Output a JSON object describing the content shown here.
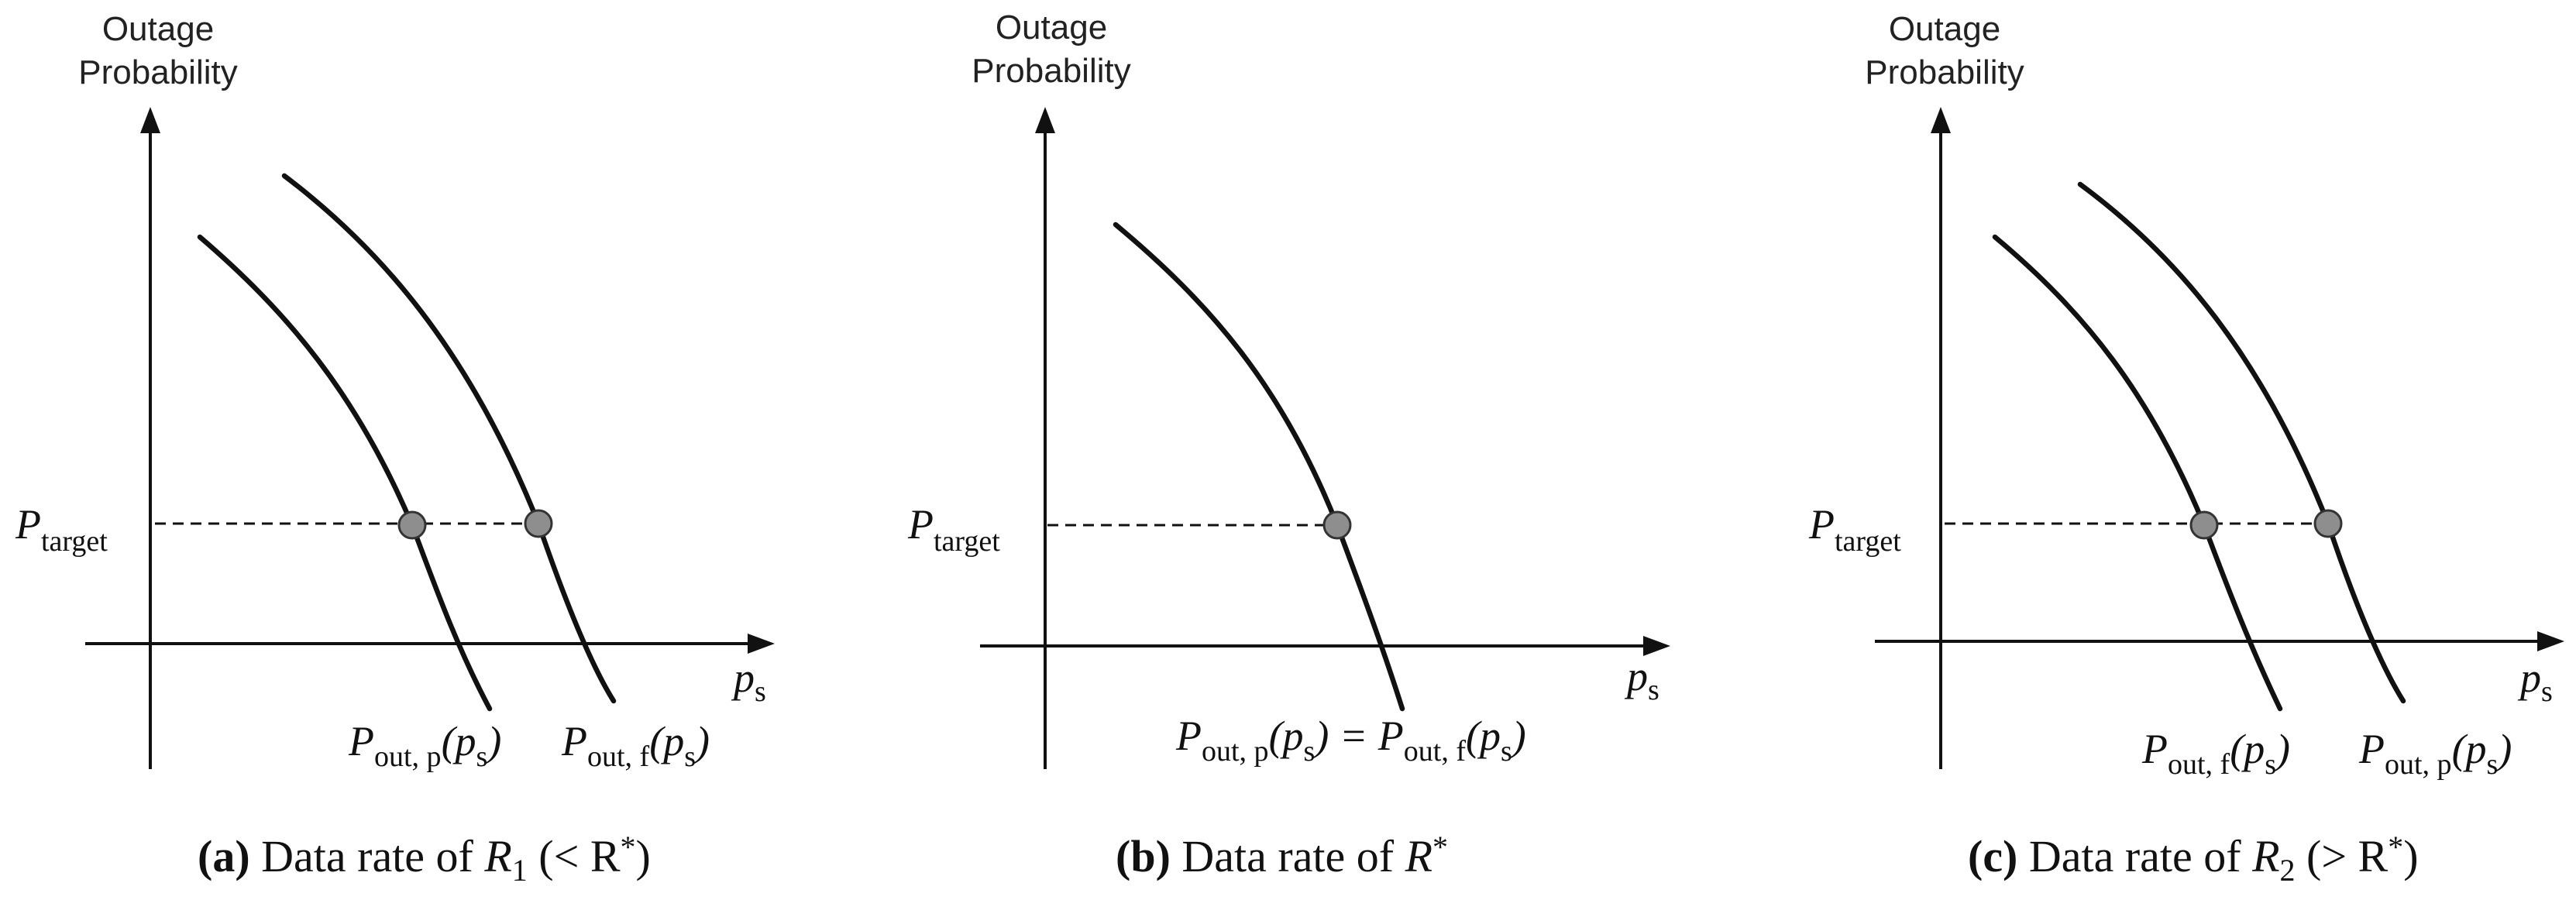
{
  "panels": [
    {
      "id": "a",
      "y_axis_label_line1": "Outage",
      "y_axis_label_line2": "Probability",
      "x_axis_label": "p",
      "x_axis_label_sub": "s",
      "target_label": "P",
      "target_label_sub": "target",
      "left_curve_label": "P",
      "left_curve_label_sub": "out, p",
      "left_curve_label_arg": "(p",
      "left_curve_label_arg_sub": "s",
      "left_curve_label_close": ")",
      "right_curve_label": "P",
      "right_curve_label_sub": "out, f",
      "right_curve_label_arg": "(p",
      "right_curve_label_arg_sub": "s",
      "right_curve_label_close": ")",
      "caption_tag": "(a)",
      "caption_text": " Data rate of ",
      "caption_var": "R",
      "caption_var_sub": "1",
      "caption_rel": " (< R",
      "caption_sup": "*",
      "caption_close": ")"
    },
    {
      "id": "b",
      "y_axis_label_line1": "Outage",
      "y_axis_label_line2": "Probability",
      "x_axis_label": "p",
      "x_axis_label_sub": "s",
      "target_label": "P",
      "target_label_sub": "target",
      "curve_label": "P",
      "curve_label_sub": "out, p",
      "curve_label_arg": "(p",
      "curve_label_arg_sub": "s",
      "curve_label_eq": ") = P",
      "curve_label_sub2": "out, f",
      "curve_label_arg2": "(p",
      "curve_label_arg2_sub": "s",
      "curve_label_close": ")",
      "caption_tag": "(b)",
      "caption_text": " Data rate of ",
      "caption_var": "R",
      "caption_sup": "*"
    },
    {
      "id": "c",
      "y_axis_label_line1": "Outage",
      "y_axis_label_line2": "Probability",
      "x_axis_label": "p",
      "x_axis_label_sub": "s",
      "target_label": "P",
      "target_label_sub": "target",
      "left_curve_label": "P",
      "left_curve_label_sub": "out, f",
      "left_curve_label_arg": "(p",
      "left_curve_label_arg_sub": "s",
      "left_curve_label_close": ")",
      "right_curve_label": "P",
      "right_curve_label_sub": "out, p",
      "right_curve_label_arg": "(p",
      "right_curve_label_arg_sub": "s",
      "right_curve_label_close": ")",
      "caption_tag": "(c)",
      "caption_text": " Data rate of ",
      "caption_var": "R",
      "caption_var_sub": "2",
      "caption_rel": " (> R",
      "caption_sup": "*",
      "caption_close": ")"
    }
  ],
  "colors": {
    "line": "#111111",
    "marker_fill": "#8e8e8e",
    "background": "#ffffff"
  }
}
